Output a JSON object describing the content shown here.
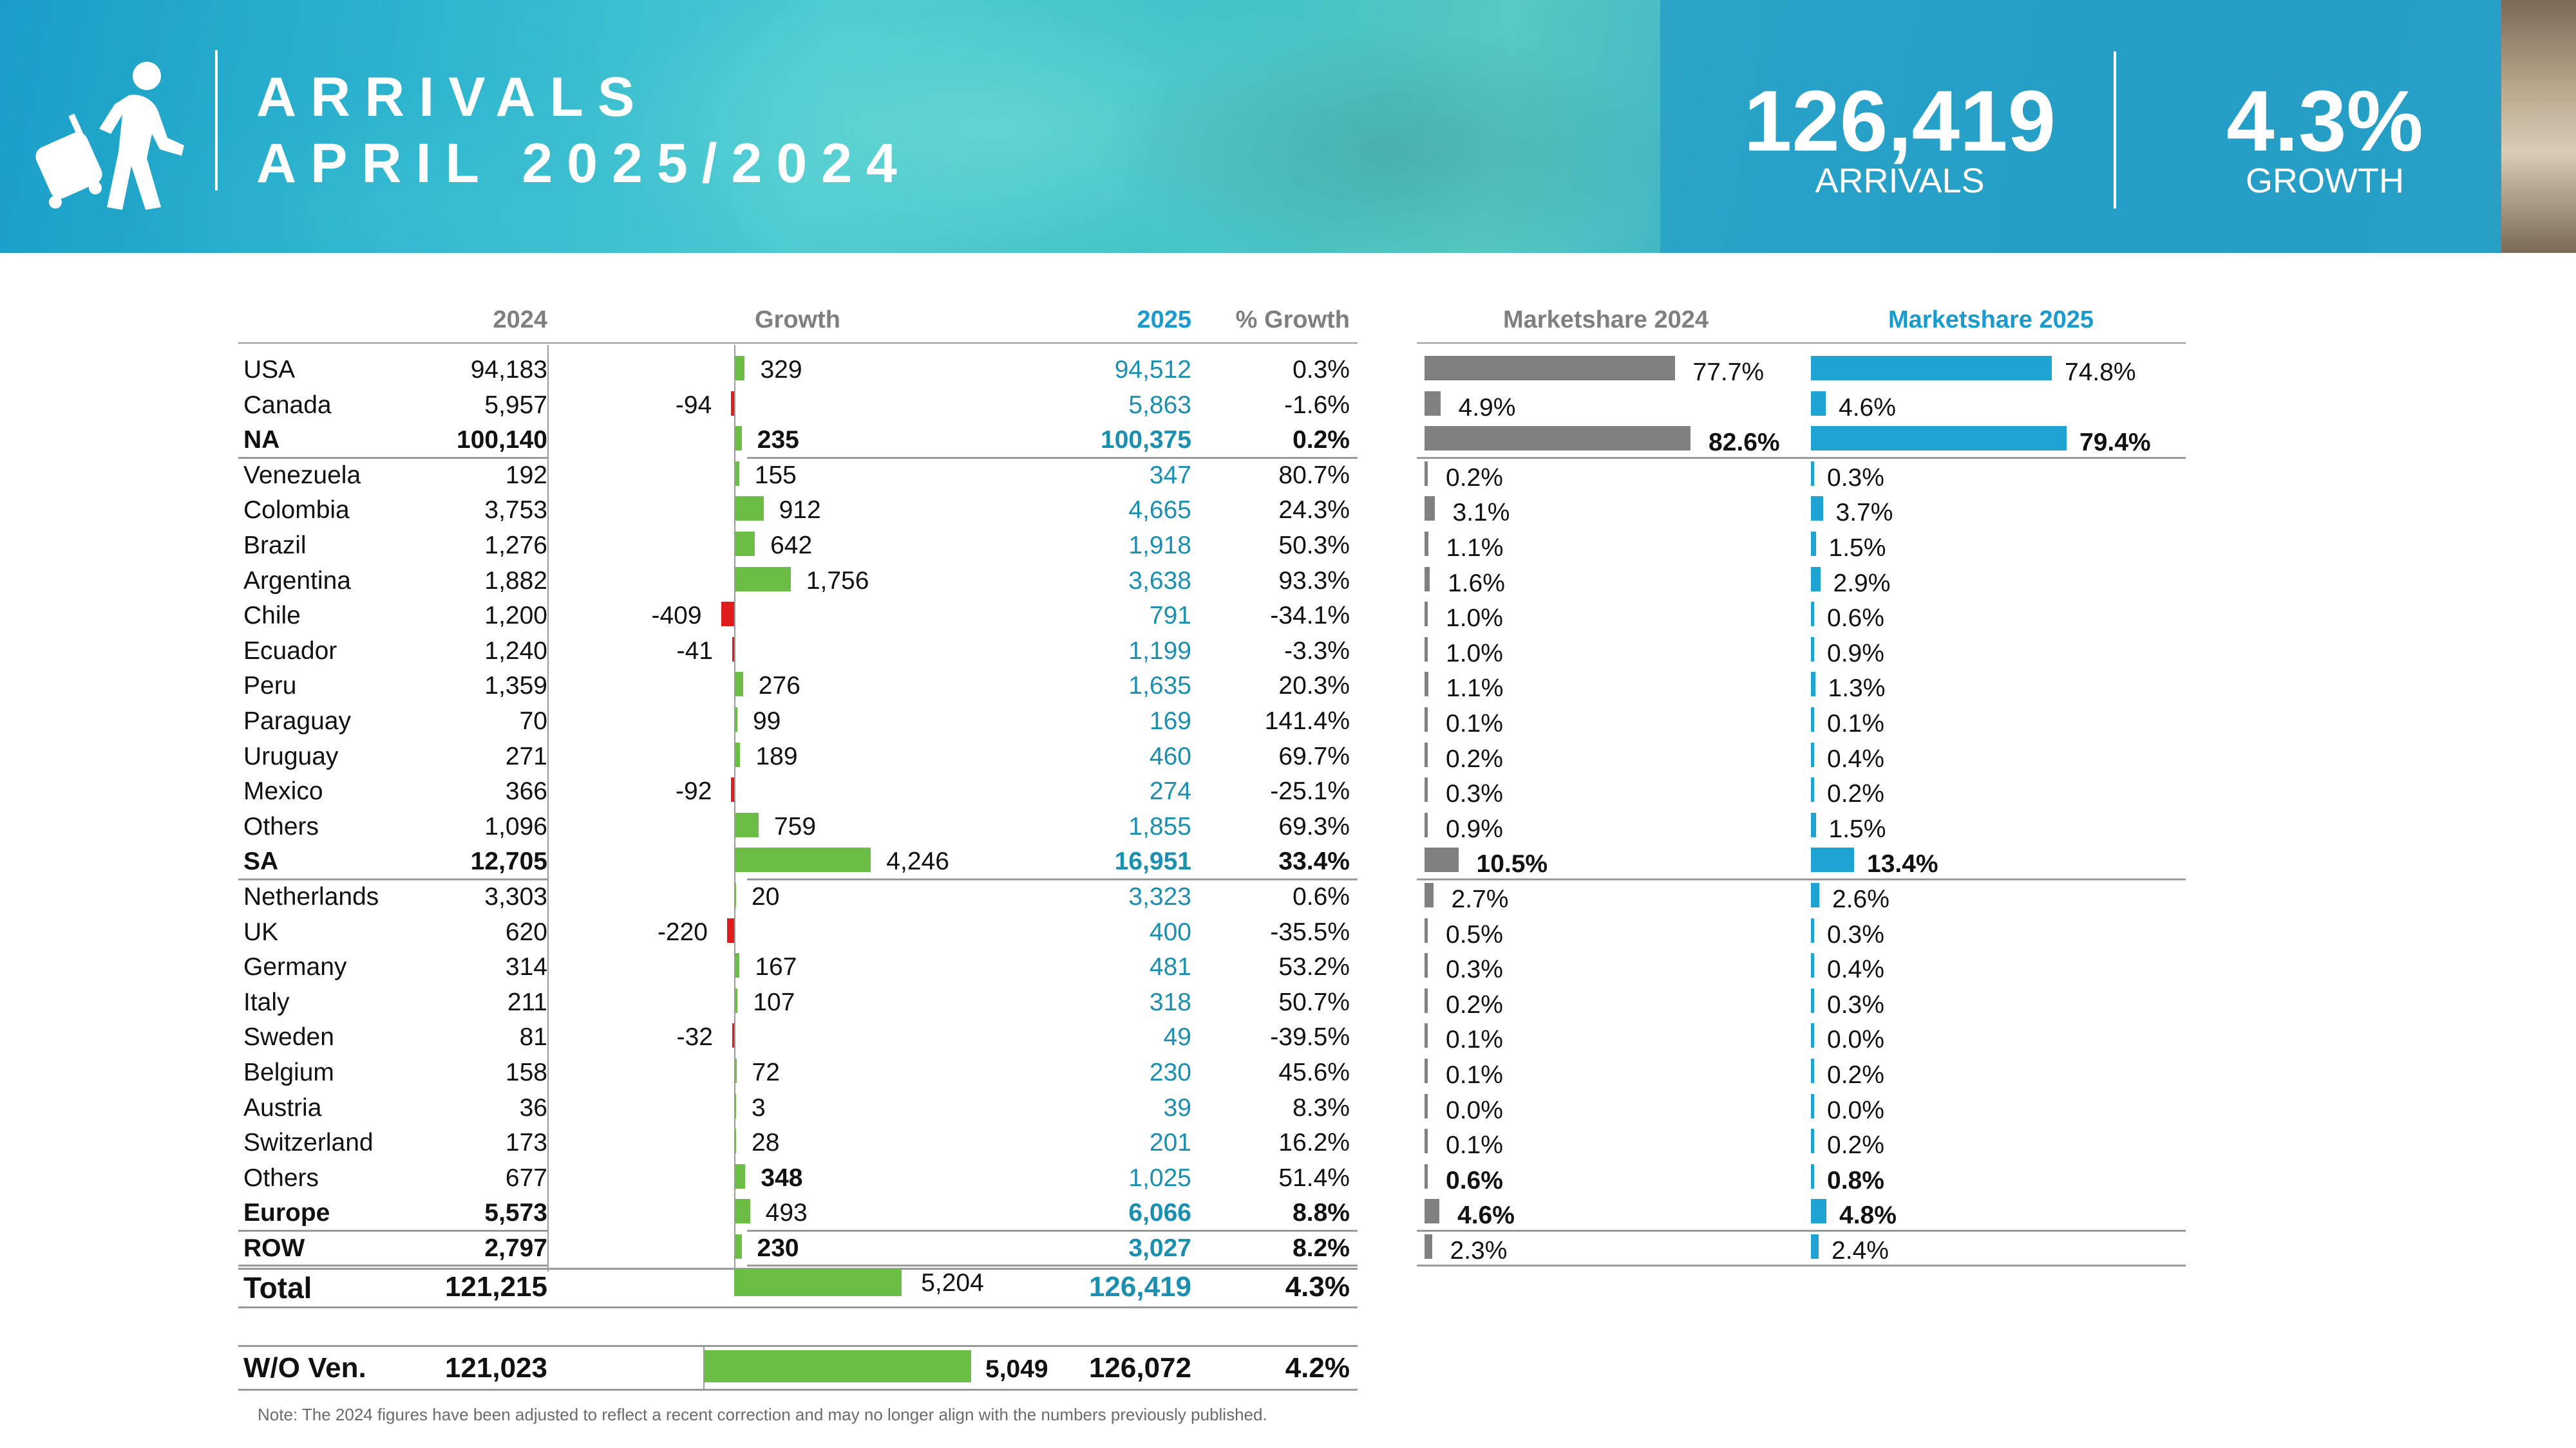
{
  "header": {
    "title_line1": "ARRIVALS",
    "title_line2": "APRIL 2025/2024",
    "kpi_arrivals_value": "126,419",
    "kpi_arrivals_label": "ARRIVALS",
    "kpi_growth_value": "4.3%",
    "kpi_growth_label": "GROWTH"
  },
  "table": {
    "columns": {
      "y2024": "2024",
      "growth": "Growth",
      "y2025": "2025",
      "pct_growth": "% Growth",
      "ms2024": "Marketshare 2024",
      "ms2025": "Marketshare 2025"
    },
    "note": "Note: The 2024 figures have been adjusted to reflect a recent correction and may no longer align with the numbers previously published."
  },
  "colors": {
    "positive_bar": "#6cbd45",
    "negative_bar": "#e11c1c",
    "ms2024_bar": "#808080",
    "ms2025_bar": "#1ea3d2",
    "teal_text": "#1a8fb0"
  },
  "chart_data": {
    "type": "table",
    "title": "ARRIVALS APRIL 2025/2024",
    "rows": [
      {
        "label": "USA",
        "y2024": "94,183",
        "growth": 329,
        "growth_text": "329",
        "y2025": "94,512",
        "pct": "0.3%",
        "ms2024": 77.7,
        "ms2024_text": "77.7%",
        "ms2025": 74.8,
        "ms2025_text": "74.8%",
        "bold": false
      },
      {
        "label": "Canada",
        "y2024": "5,957",
        "growth": -94,
        "growth_text": "-94",
        "y2025": "5,863",
        "pct": "-1.6%",
        "ms2024": 4.9,
        "ms2024_text": "4.9%",
        "ms2025": 4.6,
        "ms2025_text": "4.6%",
        "bold": false
      },
      {
        "label": "NA",
        "y2024": "100,140",
        "growth": 235,
        "growth_text": "235",
        "y2025": "100,375",
        "pct": "0.2%",
        "ms2024": 82.6,
        "ms2024_text": "82.6%",
        "ms2025": 79.4,
        "ms2025_text": "79.4%",
        "bold": true,
        "line_after": true
      },
      {
        "label": "Venezuela",
        "y2024": "192",
        "growth": 155,
        "growth_text": "155",
        "y2025": "347",
        "pct": "80.7%",
        "ms2024": 0.2,
        "ms2024_text": "0.2%",
        "ms2025": 0.3,
        "ms2025_text": "0.3%",
        "bold": false
      },
      {
        "label": "Colombia",
        "y2024": "3,753",
        "growth": 912,
        "growth_text": "912",
        "y2025": "4,665",
        "pct": "24.3%",
        "ms2024": 3.1,
        "ms2024_text": "3.1%",
        "ms2025": 3.7,
        "ms2025_text": "3.7%",
        "bold": false
      },
      {
        "label": "Brazil",
        "y2024": "1,276",
        "growth": 642,
        "growth_text": "642",
        "y2025": "1,918",
        "pct": "50.3%",
        "ms2024": 1.1,
        "ms2024_text": "1.1%",
        "ms2025": 1.5,
        "ms2025_text": "1.5%",
        "bold": false
      },
      {
        "label": "Argentina",
        "y2024": "1,882",
        "growth": 1756,
        "growth_text": "1,756",
        "y2025": "3,638",
        "pct": "93.3%",
        "ms2024": 1.6,
        "ms2024_text": "1.6%",
        "ms2025": 2.9,
        "ms2025_text": "2.9%",
        "bold": false
      },
      {
        "label": "Chile",
        "y2024": "1,200",
        "growth": -409,
        "growth_text": "-409",
        "y2025": "791",
        "pct": "-34.1%",
        "ms2024": 1.0,
        "ms2024_text": "1.0%",
        "ms2025": 0.6,
        "ms2025_text": "0.6%",
        "bold": false
      },
      {
        "label": "Ecuador",
        "y2024": "1,240",
        "growth": -41,
        "growth_text": "-41",
        "y2025": "1,199",
        "pct": "-3.3%",
        "ms2024": 1.0,
        "ms2024_text": "1.0%",
        "ms2025": 0.9,
        "ms2025_text": "0.9%",
        "bold": false
      },
      {
        "label": "Peru",
        "y2024": "1,359",
        "growth": 276,
        "growth_text": "276",
        "y2025": "1,635",
        "pct": "20.3%",
        "ms2024": 1.1,
        "ms2024_text": "1.1%",
        "ms2025": 1.3,
        "ms2025_text": "1.3%",
        "bold": false
      },
      {
        "label": "Paraguay",
        "y2024": "70",
        "growth": 99,
        "growth_text": "99",
        "y2025": "169",
        "pct": "141.4%",
        "ms2024": 0.1,
        "ms2024_text": "0.1%",
        "ms2025": 0.1,
        "ms2025_text": "0.1%",
        "bold": false
      },
      {
        "label": "Uruguay",
        "y2024": "271",
        "growth": 189,
        "growth_text": "189",
        "y2025": "460",
        "pct": "69.7%",
        "ms2024": 0.2,
        "ms2024_text": "0.2%",
        "ms2025": 0.4,
        "ms2025_text": "0.4%",
        "bold": false
      },
      {
        "label": "Mexico",
        "y2024": "366",
        "growth": -92,
        "growth_text": "-92",
        "y2025": "274",
        "pct": "-25.1%",
        "ms2024": 0.3,
        "ms2024_text": "0.3%",
        "ms2025": 0.2,
        "ms2025_text": "0.2%",
        "bold": false
      },
      {
        "label": "Others",
        "y2024": "1,096",
        "growth": 759,
        "growth_text": "759",
        "y2025": "1,855",
        "pct": "69.3%",
        "ms2024": 0.9,
        "ms2024_text": "0.9%",
        "ms2025": 1.5,
        "ms2025_text": "1.5%",
        "bold": false
      },
      {
        "label": "SA",
        "y2024": "12,705",
        "growth": 4246,
        "growth_text": "4,246",
        "y2025": "16,951",
        "pct": "33.4%",
        "ms2024": 10.5,
        "ms2024_text": "10.5%",
        "ms2025": 13.4,
        "ms2025_text": "13.4%",
        "bold": true,
        "growth_bold": false,
        "line_after": true
      },
      {
        "label": "Netherlands",
        "y2024": "3,303",
        "growth": 20,
        "growth_text": "20",
        "y2025": "3,323",
        "pct": "0.6%",
        "ms2024": 2.7,
        "ms2024_text": "2.7%",
        "ms2025": 2.6,
        "ms2025_text": "2.6%",
        "bold": false
      },
      {
        "label": "UK",
        "y2024": "620",
        "growth": -220,
        "growth_text": "-220",
        "y2025": "400",
        "pct": "-35.5%",
        "ms2024": 0.5,
        "ms2024_text": "0.5%",
        "ms2025": 0.3,
        "ms2025_text": "0.3%",
        "bold": false
      },
      {
        "label": "Germany",
        "y2024": "314",
        "growth": 167,
        "growth_text": "167",
        "y2025": "481",
        "pct": "53.2%",
        "ms2024": 0.3,
        "ms2024_text": "0.3%",
        "ms2025": 0.4,
        "ms2025_text": "0.4%",
        "bold": false
      },
      {
        "label": "Italy",
        "y2024": "211",
        "growth": 107,
        "growth_text": "107",
        "y2025": "318",
        "pct": "50.7%",
        "ms2024": 0.2,
        "ms2024_text": "0.2%",
        "ms2025": 0.3,
        "ms2025_text": "0.3%",
        "bold": false
      },
      {
        "label": "Sweden",
        "y2024": "81",
        "growth": -32,
        "growth_text": "-32",
        "y2025": "49",
        "pct": "-39.5%",
        "ms2024": 0.1,
        "ms2024_text": "0.1%",
        "ms2025": 0.0,
        "ms2025_text": "0.0%",
        "bold": false
      },
      {
        "label": "Belgium",
        "y2024": "158",
        "growth": 72,
        "growth_text": "72",
        "y2025": "230",
        "pct": "45.6%",
        "ms2024": 0.1,
        "ms2024_text": "0.1%",
        "ms2025": 0.2,
        "ms2025_text": "0.2%",
        "bold": false
      },
      {
        "label": "Austria",
        "y2024": "36",
        "growth": 3,
        "growth_text": "3",
        "y2025": "39",
        "pct": "8.3%",
        "ms2024": 0.0,
        "ms2024_text": "0.0%",
        "ms2025": 0.0,
        "ms2025_text": "0.0%",
        "bold": false
      },
      {
        "label": "Switzerland",
        "y2024": "173",
        "growth": 28,
        "growth_text": "28",
        "y2025": "201",
        "pct": "16.2%",
        "ms2024": 0.1,
        "ms2024_text": "0.1%",
        "ms2025": 0.2,
        "ms2025_text": "0.2%",
        "bold": false
      },
      {
        "label": "Others",
        "y2024": "677",
        "growth": 348,
        "growth_text": "348",
        "y2025": "1,025",
        "pct": "51.4%",
        "ms2024": 0.6,
        "ms2024_text": "0.6%",
        "ms2025": 0.8,
        "ms2025_text": "0.8%",
        "bold": false,
        "growth_bold": true,
        "ms_bold": true
      },
      {
        "label": "Europe",
        "y2024": "5,573",
        "growth": 493,
        "growth_text": "493",
        "y2025": "6,066",
        "pct": "8.8%",
        "ms2024": 4.6,
        "ms2024_text": "4.6%",
        "ms2025": 4.8,
        "ms2025_text": "4.8%",
        "bold": true,
        "growth_bold": false,
        "line_after": true
      },
      {
        "label": "ROW",
        "y2024": "2,797",
        "growth": 230,
        "growth_text": "230",
        "y2025": "3,027",
        "pct": "8.2%",
        "ms2024": 2.3,
        "ms2024_text": "2.3%",
        "ms2025": 2.4,
        "ms2025_text": "2.4%",
        "bold": true,
        "ms_bold": false,
        "line_after": true
      }
    ],
    "total": {
      "label": "Total",
      "y2024": "121,215",
      "growth": 5204,
      "growth_text": "5,204",
      "y2025": "126,419",
      "pct": "4.3%"
    },
    "without_venezuela": {
      "label": "W/O Ven.",
      "y2024": "121,023",
      "growth": 5049,
      "growth_text": "5,049",
      "y2025": "126,072",
      "pct": "4.2%"
    }
  }
}
